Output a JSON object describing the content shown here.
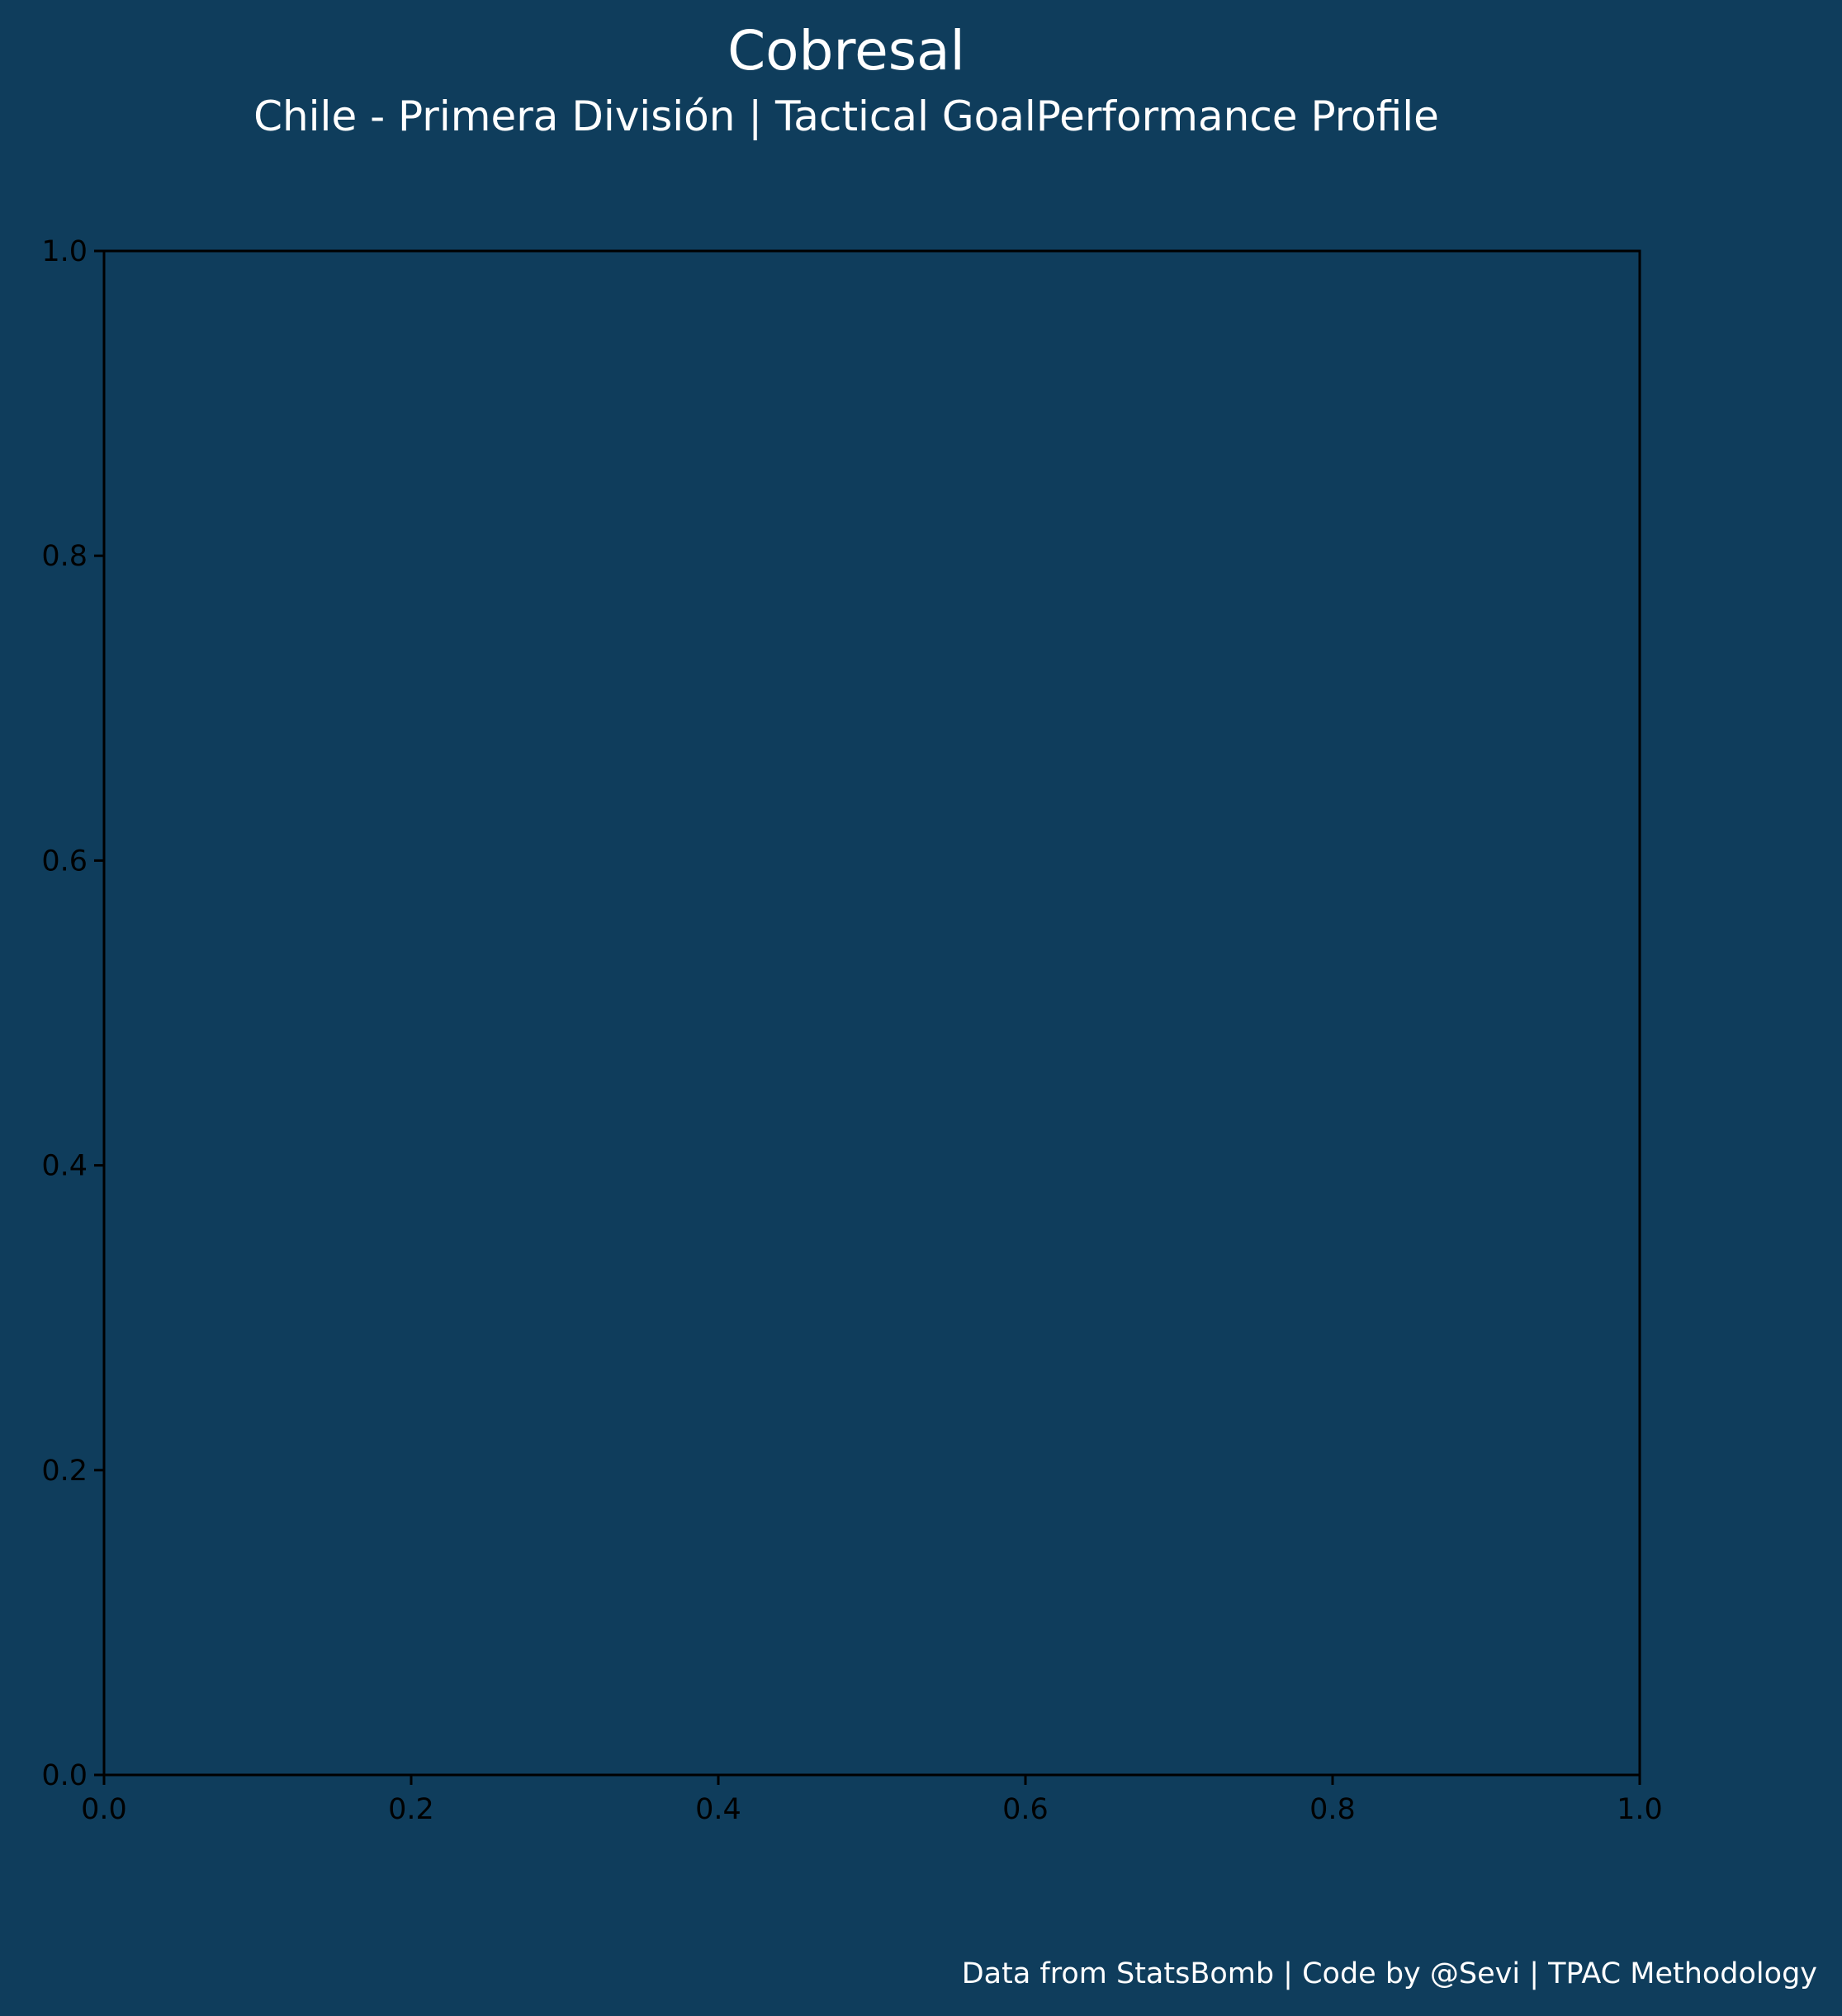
{
  "header": {
    "title": "Cobresal",
    "subtitle": "Chile - Primera División | Tactical GoalPerformance Profile"
  },
  "footer": {
    "credit": "Data from StatsBomb | Code by @Sevi | TPAC Methodology"
  },
  "colors": {
    "background": "#0f3d5c",
    "axes_face": "#0f3d5c",
    "axes_edge": "#000000",
    "title_text": "#ffffff",
    "tick_text": "#000000"
  },
  "chart_data": {
    "type": "scatter",
    "series": [],
    "xlim": [
      0.0,
      1.0
    ],
    "ylim": [
      0.0,
      1.0
    ],
    "x_ticks": [
      "0.0",
      "0.2",
      "0.4",
      "0.6",
      "0.8",
      "1.0"
    ],
    "y_ticks": [
      "0.0",
      "0.2",
      "0.4",
      "0.6",
      "0.8",
      "1.0"
    ],
    "grid": false,
    "xlabel": "",
    "ylabel": ""
  }
}
